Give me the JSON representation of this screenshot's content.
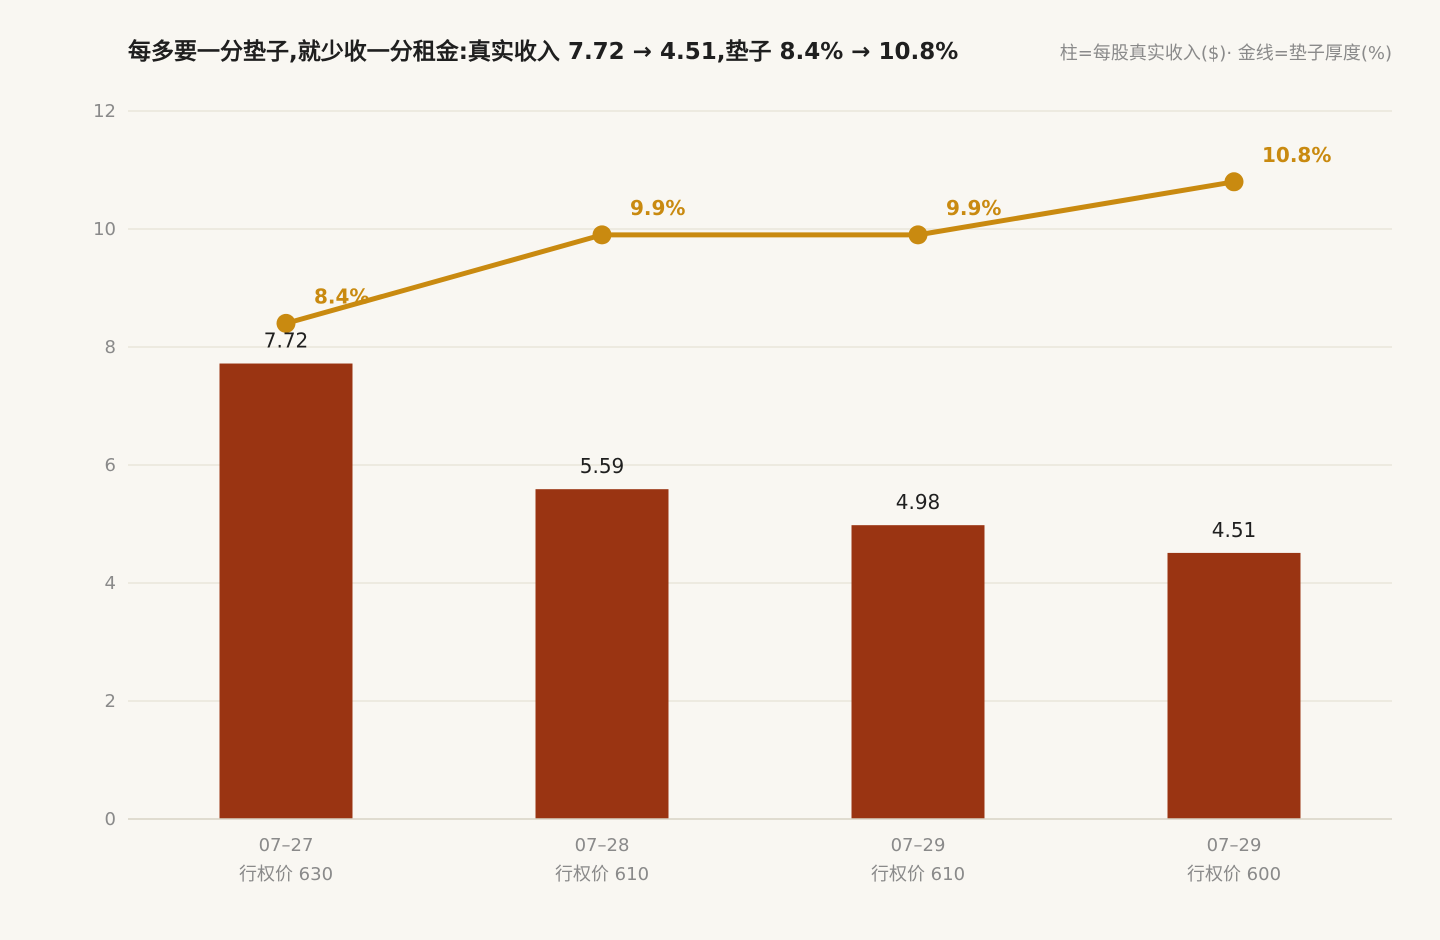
{
  "chart_data": {
    "type": "bar",
    "title": "每多要一分垫子,就少收一分租金:真实收入 7.72 → 4.51,垫子 8.4% → 10.8%",
    "legend_note": "柱=每股真实收入($)· 金线=垫子厚度(%)",
    "categories": [
      {
        "date": "07–27",
        "strike": "行权价 630"
      },
      {
        "date": "07–28",
        "strike": "行权价 610"
      },
      {
        "date": "07–29",
        "strike": "行权价 610"
      },
      {
        "date": "07–29",
        "strike": "行权价 600"
      }
    ],
    "ylim": [
      0,
      12
    ],
    "yticks": [
      "0",
      "2",
      "4",
      "6",
      "8",
      "10",
      "12"
    ],
    "grid": true,
    "series": [
      {
        "type": "bar",
        "values": [
          7.72,
          5.59,
          4.98,
          4.51
        ],
        "labels": [
          "7.72",
          "5.59",
          "4.98",
          "4.51"
        ],
        "color": "#9a3412"
      },
      {
        "type": "line",
        "values": [
          8.4,
          9.9,
          9.9,
          10.8
        ],
        "labels": [
          "8.4%",
          "9.9%",
          "9.9%",
          "10.8%"
        ],
        "color": "#c98a10"
      }
    ]
  }
}
